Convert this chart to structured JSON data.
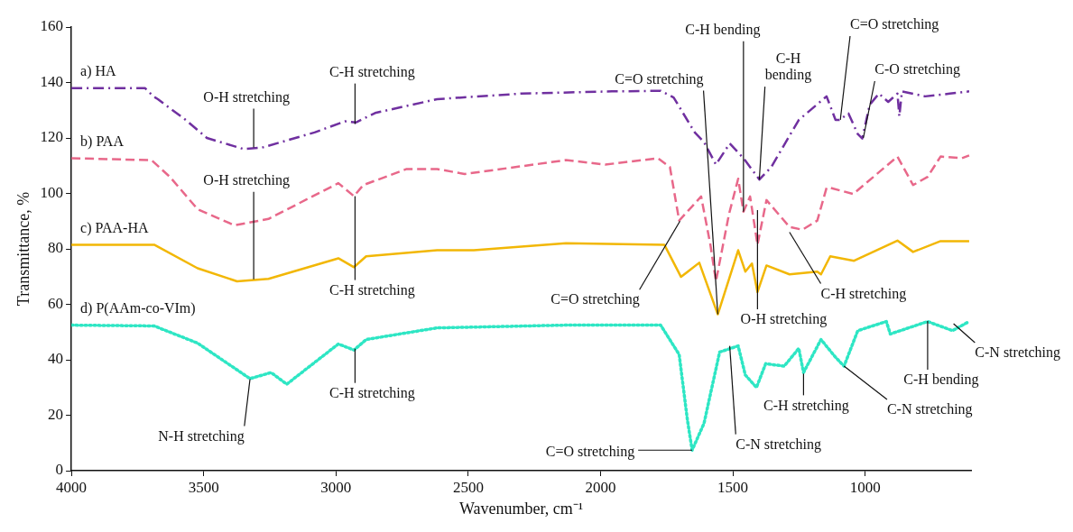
{
  "chart_data": {
    "type": "line",
    "xlabel": "Wavenumber, cm⁻¹",
    "ylabel": "Transmittance, %",
    "xlim": [
      4000,
      600
    ],
    "xticks": [
      4000,
      3500,
      3000,
      2500,
      2000,
      1500,
      1000
    ],
    "ylim": [
      0,
      160
    ],
    "yticks": [
      0,
      20,
      40,
      60,
      80,
      100,
      120,
      140,
      160
    ],
    "grid": false,
    "legend": false,
    "marker": "none",
    "series": [
      {
        "name": "a) HA",
        "color": "#7030a0",
        "line_style": "dashdot",
        "x": [
          4000,
          3722,
          3690,
          3673,
          3568,
          3488,
          3349,
          3280,
          3081,
          2966,
          2925,
          2852,
          2618,
          2300,
          1957,
          1773,
          1724,
          1644,
          1609,
          1564,
          1512,
          1460,
          1400,
          1355,
          1251,
          1146,
          1112,
          1098,
          1063,
          1028,
          1011,
          983,
          948,
          913,
          878,
          871,
          861,
          774,
          680,
          607
        ],
        "values": [
          138,
          138,
          135,
          134,
          126.5,
          120,
          116,
          116.5,
          122,
          126,
          125.6,
          129,
          134,
          136,
          136.8,
          137,
          134.6,
          122,
          118.5,
          110.4,
          118,
          112.7,
          105,
          109.5,
          126.5,
          135,
          126.5,
          126.5,
          128.8,
          121.4,
          119.8,
          132,
          136,
          133,
          136,
          127.8,
          136.8,
          135,
          136,
          136.8
        ]
      },
      {
        "name": "b) PAA",
        "color": "#e8688a",
        "line_style": "dashed",
        "x": [
          4000,
          3697,
          3628,
          3523,
          3384,
          3255,
          2991,
          2932,
          2897,
          2733,
          2618,
          2514,
          2131,
          1982,
          1783,
          1738,
          1703,
          1620,
          1585,
          1564,
          1515,
          1480,
          1460,
          1435,
          1407,
          1373,
          1286,
          1237,
          1181,
          1146,
          1132,
          1045,
          878,
          819,
          764,
          715,
          635,
          607
        ],
        "values": [
          112.7,
          112,
          106,
          94.3,
          88.5,
          90.8,
          103.7,
          99,
          103,
          108.8,
          108.8,
          107,
          112,
          110.4,
          112.7,
          109.5,
          90.2,
          98.9,
          81.5,
          68.3,
          92.4,
          105.3,
          93.4,
          98.9,
          81.5,
          97.6,
          87.9,
          86.9,
          90.2,
          102,
          102,
          99.8,
          113.3,
          103,
          106,
          113.3,
          112.7,
          113.7
        ]
      },
      {
        "name": "c) PAA-HA",
        "color": "#f2b705",
        "line_style": "solid",
        "x": [
          4000,
          3687,
          3523,
          3374,
          3255,
          2991,
          2932,
          2886,
          2618,
          2479,
          2131,
          1759,
          1696,
          1627,
          1557,
          1480,
          1453,
          1428,
          1407,
          1373,
          1286,
          1181,
          1167,
          1132,
          1042,
          878,
          819,
          715,
          607
        ],
        "values": [
          81.5,
          81.5,
          73,
          68.3,
          69.2,
          76.6,
          73.4,
          77.3,
          79.5,
          79.5,
          82,
          81.5,
          69.9,
          75,
          56.4,
          79.5,
          71.8,
          74.7,
          64.4,
          74,
          70.8,
          71.8,
          70.8,
          77.3,
          75.7,
          83,
          78.9,
          82.8,
          82.8
        ]
      },
      {
        "name": "d) P(AAm-co-VIm)",
        "color": "#2ee6c4",
        "line_style": "dotted",
        "x": [
          4000,
          3687,
          3523,
          3325,
          3245,
          3186,
          2991,
          2932,
          2886,
          2618,
          2131,
          1773,
          1703,
          1672,
          1654,
          1609,
          1550,
          1480,
          1453,
          1411,
          1376,
          1306,
          1251,
          1233,
          1167,
          1112,
          1080,
          1028,
          920,
          905,
          764,
          670,
          607
        ],
        "values": [
          52.5,
          52.2,
          46,
          33.2,
          35.4,
          31.2,
          45.7,
          43.5,
          47.3,
          51.5,
          52.5,
          52.5,
          41.9,
          18.4,
          7.4,
          17.1,
          42.8,
          45,
          34.5,
          30,
          38.6,
          37.7,
          44.1,
          35.4,
          47.3,
          40.9,
          37.7,
          50.5,
          53.8,
          49.3,
          53.8,
          50.5,
          53.8
        ]
      }
    ],
    "annotations": [
      {
        "text": "O-H stretching",
        "x": 3311,
        "y": 116.6
      },
      {
        "text": "C-H stretching",
        "x": 2928,
        "y": 125
      },
      {
        "text": "O-H stretching",
        "x": 3311,
        "y": 69
      },
      {
        "text": "C-H stretching",
        "x": 2928,
        "y": 99
      },
      {
        "text": "N-H stretching",
        "x": 3325,
        "y": 33
      },
      {
        "text": "C-H stretching",
        "x": 2928,
        "y": 44
      },
      {
        "text": "C=O stretching",
        "x": 1557,
        "y": 56.4
      },
      {
        "text": "C-H bending",
        "x": 1460,
        "y": 93.4
      },
      {
        "text": "C-H\nbending",
        "x": 1400,
        "y": 105
      },
      {
        "text": "C=O stretching",
        "x": 1094,
        "y": 126.5
      },
      {
        "text": "C-O stretching",
        "x": 1007,
        "y": 120
      },
      {
        "text": "C=O stretching",
        "x": 1700,
        "y": 90
      },
      {
        "text": "O-H stretching",
        "x": 1407,
        "y": 94
      },
      {
        "text": "C-H stretching",
        "x": 1286,
        "y": 86
      },
      {
        "text": "C=O stretching",
        "x": 1654,
        "y": 7.4
      },
      {
        "text": "C-N stretching",
        "x": 1512,
        "y": 45
      },
      {
        "text": "C-H stretching",
        "x": 1233,
        "y": 35
      },
      {
        "text": "C-N stretching",
        "x": 1080,
        "y": 37.7
      },
      {
        "text": "C-H bending",
        "x": 764,
        "y": 54
      },
      {
        "text": "C-N stretching",
        "x": 666,
        "y": 53
      }
    ]
  }
}
